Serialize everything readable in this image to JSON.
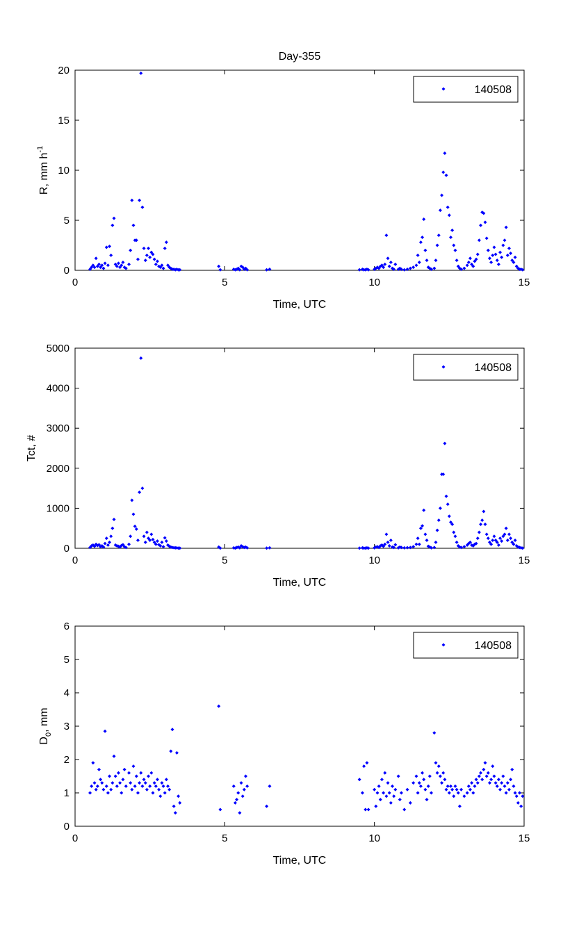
{
  "chart_data": {
    "type": "scatter",
    "title": "Day-355",
    "marker_color": "#0000ff",
    "x": [
      0.5,
      0.55,
      0.6,
      0.65,
      0.7,
      0.75,
      0.8,
      0.85,
      0.9,
      0.95,
      1.0,
      1.05,
      1.1,
      1.15,
      1.2,
      1.25,
      1.3,
      1.35,
      1.4,
      1.45,
      1.5,
      1.55,
      1.6,
      1.65,
      1.7,
      1.8,
      1.85,
      1.9,
      1.95,
      2.0,
      2.05,
      2.1,
      2.15,
      2.2,
      2.25,
      2.3,
      2.35,
      2.4,
      2.45,
      2.5,
      2.55,
      2.6,
      2.65,
      2.7,
      2.75,
      2.8,
      2.85,
      2.9,
      2.95,
      3.0,
      3.05,
      3.1,
      3.15,
      3.2,
      3.25,
      3.3,
      3.35,
      3.4,
      3.45,
      3.5,
      4.8,
      4.85,
      5.3,
      5.35,
      5.4,
      5.45,
      5.5,
      5.55,
      5.6,
      5.65,
      5.7,
      5.75,
      6.4,
      6.5,
      9.5,
      9.6,
      9.65,
      9.7,
      9.75,
      9.8,
      10.0,
      10.05,
      10.1,
      10.15,
      10.2,
      10.25,
      10.3,
      10.35,
      10.4,
      10.45,
      10.5,
      10.55,
      10.6,
      10.65,
      10.7,
      10.8,
      10.85,
      10.9,
      11.0,
      11.1,
      11.2,
      11.3,
      11.4,
      11.45,
      11.5,
      11.55,
      11.6,
      11.65,
      11.7,
      11.75,
      11.8,
      11.85,
      11.9,
      12.0,
      12.05,
      12.1,
      12.15,
      12.2,
      12.25,
      12.3,
      12.35,
      12.4,
      12.45,
      12.5,
      12.55,
      12.6,
      12.65,
      12.7,
      12.75,
      12.8,
      12.85,
      12.9,
      13.0,
      13.1,
      13.15,
      13.2,
      13.25,
      13.3,
      13.35,
      13.4,
      13.45,
      13.5,
      13.55,
      13.6,
      13.65,
      13.7,
      13.75,
      13.8,
      13.85,
      13.9,
      13.95,
      14.0,
      14.05,
      14.1,
      14.15,
      14.2,
      14.25,
      14.3,
      14.35,
      14.4,
      14.45,
      14.5,
      14.55,
      14.6,
      14.65,
      14.7,
      14.75,
      14.8,
      14.85,
      14.9,
      14.95
    ],
    "subplots": [
      {
        "ylabel": "R, mm h",
        "ylabel_sup": "-1",
        "xlabel": "Time, UTC",
        "xlim": [
          0,
          15
        ],
        "ylim": [
          0,
          20
        ],
        "xticks": [
          "0",
          "5",
          "10",
          "15"
        ],
        "xtick_values": [
          0,
          5,
          10,
          15
        ],
        "yticks": [
          "0",
          "5",
          "10",
          "15",
          "20"
        ],
        "ytick_values": [
          0,
          5,
          10,
          15,
          20
        ],
        "legend": "140508",
        "legend_position": "top-right",
        "y": [
          0.1,
          0.3,
          0.5,
          0.3,
          1.2,
          0.4,
          0.6,
          0.3,
          0.5,
          0.2,
          0.7,
          2.3,
          0.5,
          2.4,
          1.5,
          4.5,
          5.2,
          0.6,
          0.4,
          0.7,
          0.3,
          0.5,
          0.8,
          0.3,
          0.2,
          0.6,
          2.0,
          7.0,
          4.5,
          3.0,
          3.0,
          1.1,
          7.0,
          19.7,
          6.3,
          2.2,
          1.0,
          1.5,
          2.2,
          1.3,
          1.8,
          1.6,
          1.1,
          0.6,
          0.9,
          0.4,
          0.3,
          0.5,
          0.2,
          2.2,
          2.8,
          0.5,
          0.3,
          0.2,
          0.1,
          0.1,
          0.05,
          0.1,
          0.05,
          0.05,
          0.4,
          0.05,
          0.1,
          0.05,
          0.1,
          0.2,
          0.05,
          0.4,
          0.3,
          0.1,
          0.2,
          0.05,
          0.05,
          0.1,
          0.05,
          0.1,
          0.05,
          0.05,
          0.1,
          0.05,
          0.1,
          0.2,
          0.3,
          0.2,
          0.4,
          0.5,
          0.3,
          0.6,
          3.5,
          1.2,
          0.4,
          0.8,
          0.2,
          0.1,
          0.6,
          0.1,
          0.2,
          0.1,
          0.05,
          0.1,
          0.2,
          0.3,
          0.5,
          1.5,
          0.8,
          2.8,
          3.3,
          5.1,
          2.0,
          1.0,
          0.3,
          0.2,
          0.1,
          0.2,
          1.0,
          2.5,
          3.5,
          6.0,
          7.5,
          9.8,
          11.7,
          9.5,
          6.3,
          5.5,
          3.3,
          4.0,
          2.5,
          2.0,
          1.0,
          0.4,
          0.2,
          0.1,
          0.2,
          0.5,
          0.8,
          1.2,
          0.6,
          0.4,
          0.9,
          1.1,
          1.6,
          3.0,
          4.5,
          5.8,
          5.7,
          4.8,
          3.2,
          2.0,
          1.2,
          0.8,
          1.5,
          2.3,
          1.6,
          1.0,
          0.6,
          1.8,
          1.3,
          2.5,
          3.0,
          4.3,
          1.5,
          2.2,
          1.7,
          1.0,
          0.8,
          1.3,
          0.4,
          0.2,
          0.1,
          0.1,
          0.05
        ]
      },
      {
        "ylabel": "Tct, #",
        "ylabel_sup": "",
        "xlabel": "Time, UTC",
        "xlim": [
          0,
          15
        ],
        "ylim": [
          0,
          5000
        ],
        "xticks": [
          "0",
          "5",
          "10",
          "15"
        ],
        "xtick_values": [
          0,
          5,
          10,
          15
        ],
        "yticks": [
          "0",
          "1000",
          "2000",
          "3000",
          "4000",
          "5000"
        ],
        "ytick_values": [
          0,
          1000,
          2000,
          3000,
          4000,
          5000
        ],
        "legend": "140508",
        "legend_position": "top-right",
        "y": [
          20,
          60,
          80,
          50,
          100,
          70,
          90,
          40,
          60,
          30,
          120,
          250,
          80,
          150,
          300,
          500,
          720,
          80,
          60,
          50,
          30,
          70,
          90,
          40,
          20,
          100,
          300,
          1200,
          850,
          550,
          480,
          200,
          1400,
          4750,
          1500,
          300,
          150,
          400,
          250,
          200,
          350,
          220,
          150,
          100,
          180,
          90,
          60,
          150,
          40,
          260,
          180,
          80,
          50,
          30,
          20,
          15,
          10,
          10,
          5,
          5,
          30,
          5,
          10,
          5,
          20,
          30,
          10,
          60,
          40,
          20,
          30,
          10,
          5,
          10,
          5,
          10,
          5,
          5,
          10,
          5,
          10,
          30,
          40,
          20,
          60,
          80,
          50,
          100,
          350,
          150,
          60,
          200,
          30,
          20,
          90,
          10,
          30,
          20,
          10,
          15,
          20,
          40,
          100,
          250,
          100,
          500,
          560,
          950,
          350,
          200,
          50,
          30,
          10,
          20,
          150,
          450,
          700,
          1000,
          1850,
          1850,
          2620,
          1300,
          1100,
          800,
          650,
          600,
          400,
          300,
          150,
          60,
          30,
          20,
          40,
          80,
          120,
          150,
          80,
          60,
          100,
          120,
          250,
          400,
          600,
          700,
          920,
          600,
          350,
          250,
          150,
          100,
          200,
          300,
          200,
          150,
          80,
          250,
          180,
          300,
          350,
          500,
          200,
          350,
          250,
          150,
          100,
          200,
          60,
          30,
          20,
          10,
          5
        ]
      },
      {
        "ylabel": "D",
        "ylabel_sub": "0",
        "ylabel_rest": ", mm",
        "xlabel": "Time, UTC",
        "xlim": [
          0,
          15
        ],
        "ylim": [
          0,
          6
        ],
        "xticks": [
          "0",
          "5",
          "10",
          "15"
        ],
        "xtick_values": [
          0,
          5,
          10,
          15
        ],
        "yticks": [
          "0",
          "1",
          "2",
          "3",
          "4",
          "5",
          "6"
        ],
        "ytick_values": [
          0,
          1,
          2,
          3,
          4,
          5,
          6
        ],
        "legend": "140508",
        "legend_position": "top-right",
        "y": [
          1.0,
          1.2,
          1.9,
          1.3,
          1.1,
          1.2,
          1.7,
          1.4,
          1.3,
          1.1,
          2.85,
          1.2,
          1.0,
          1.5,
          1.1,
          1.3,
          2.1,
          1.5,
          1.2,
          1.6,
          1.3,
          1.0,
          1.4,
          1.7,
          1.2,
          1.6,
          1.3,
          1.1,
          1.8,
          1.2,
          1.5,
          1.0,
          1.3,
          1.6,
          1.2,
          1.4,
          1.3,
          1.1,
          1.5,
          1.2,
          1.6,
          1.0,
          1.3,
          1.2,
          1.4,
          1.1,
          0.9,
          1.3,
          1.2,
          1.0,
          1.4,
          1.2,
          1.1,
          2.25,
          2.9,
          0.6,
          0.4,
          2.2,
          0.9,
          0.7,
          3.6,
          0.5,
          1.2,
          0.7,
          0.8,
          1.0,
          0.4,
          1.3,
          0.9,
          1.1,
          1.5,
          1.2,
          0.6,
          1.2,
          1.4,
          1.0,
          1.8,
          0.5,
          1.9,
          0.5,
          1.1,
          0.6,
          1.0,
          1.2,
          0.8,
          1.4,
          1.0,
          1.6,
          0.9,
          1.3,
          1.0,
          0.7,
          1.2,
          0.9,
          1.1,
          1.5,
          0.8,
          1.0,
          0.5,
          1.1,
          0.7,
          1.3,
          1.5,
          1.0,
          1.3,
          1.2,
          1.6,
          1.4,
          1.1,
          0.8,
          1.2,
          1.5,
          1.0,
          2.8,
          1.9,
          1.6,
          1.8,
          1.5,
          1.3,
          1.6,
          1.4,
          1.1,
          1.2,
          1.0,
          1.2,
          1.1,
          0.9,
          1.2,
          1.1,
          1.0,
          0.6,
          1.1,
          0.9,
          1.0,
          1.2,
          1.1,
          1.3,
          1.0,
          1.2,
          1.4,
          1.3,
          1.5,
          1.6,
          1.4,
          1.7,
          1.9,
          1.5,
          1.6,
          1.3,
          1.4,
          1.8,
          1.5,
          1.3,
          1.2,
          1.4,
          1.1,
          1.3,
          1.5,
          1.2,
          1.0,
          1.3,
          1.1,
          1.4,
          1.7,
          1.2,
          1.0,
          0.9,
          0.7,
          1.0,
          0.6,
          0.9
        ]
      }
    ]
  }
}
